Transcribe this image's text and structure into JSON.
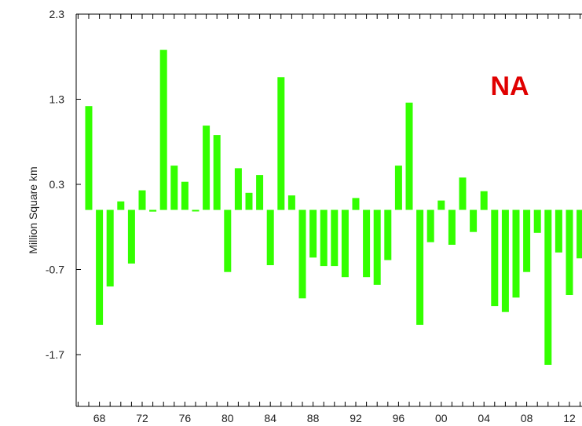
{
  "chart_data": {
    "type": "bar",
    "region_label": "NA",
    "ylabel": "Million Square km",
    "xlabel": "",
    "ylim": [
      -2.3,
      2.3
    ],
    "y_ticks": [
      2.3,
      1.3,
      0.3,
      -0.7,
      -1.7
    ],
    "y_tick_labels": [
      "2.3",
      "1.3",
      "0.3",
      "-0.7",
      "-1.7"
    ],
    "x_range": [
      1965.5,
      2014.5
    ],
    "x_tick_values": [
      1968,
      1972,
      1976,
      1980,
      1984,
      1988,
      1992,
      1996,
      2000,
      2004,
      2008,
      2012
    ],
    "x_tick_labels": [
      "68",
      "72",
      "76",
      "80",
      "84",
      "88",
      "92",
      "96",
      "00",
      "04",
      "08",
      "12"
    ],
    "bar_color": "#33ff00",
    "label_color": "#e00000",
    "x": [
      1967,
      1968,
      1969,
      1970,
      1971,
      1972,
      1973,
      1974,
      1975,
      1976,
      1977,
      1978,
      1979,
      1980,
      1981,
      1982,
      1983,
      1984,
      1985,
      1986,
      1987,
      1988,
      1989,
      1990,
      1991,
      1992,
      1993,
      1994,
      1995,
      1996,
      1997,
      1998,
      1999,
      2000,
      2001,
      2002,
      2003,
      2004,
      2005,
      2006,
      2007,
      2008,
      2009,
      2010,
      2011,
      2012,
      2013
    ],
    "values": [
      1.22,
      -1.35,
      -0.9,
      0.1,
      -0.63,
      0.23,
      -0.02,
      1.88,
      0.52,
      0.33,
      0.0,
      0.99,
      0.88,
      -0.73,
      0.49,
      0.2,
      0.41,
      -0.65,
      1.56,
      0.17,
      -1.04,
      -0.56,
      -0.66,
      -0.66,
      -0.79,
      0.14,
      -0.79,
      -0.88,
      -0.59,
      0.52,
      1.26,
      -1.35,
      -0.38,
      0.11,
      -0.41,
      0.38,
      -0.26,
      0.22,
      -1.13,
      -1.2,
      -1.03,
      -0.73,
      -0.27,
      -1.82,
      -0.5,
      -1.0,
      -0.57
    ]
  }
}
